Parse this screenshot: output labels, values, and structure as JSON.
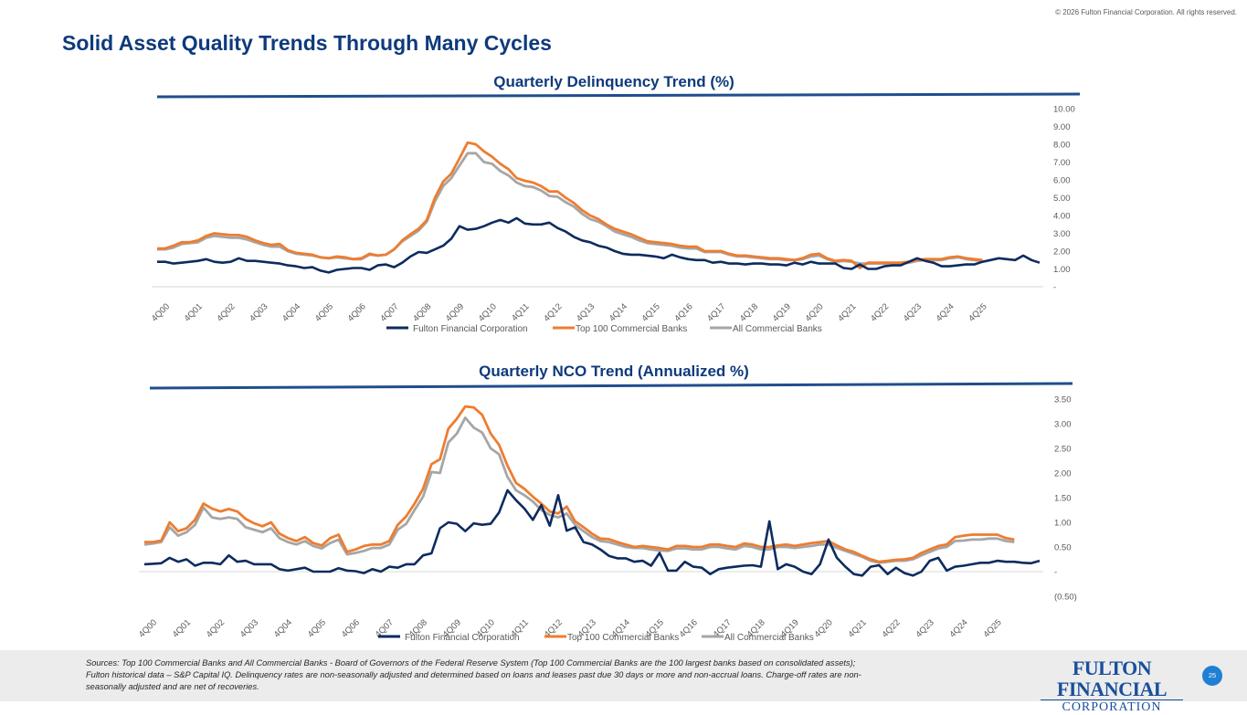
{
  "copyright": "© 2026 Fulton Financial Corporation.  All rights reserved.",
  "page_title": "Solid Asset Quality Trends Through Many Cycles",
  "colors": {
    "title": "#0e3a7c",
    "fulton": "#0d2b5e",
    "top100": "#ed7d31",
    "all": "#a6a6a6",
    "rule": "#1f4e8c"
  },
  "footer": {
    "sources_line1": "Sources: Top 100 Commercial Banks and All Commercial Banks - Board of Governors of the Federal Reserve System (Top 100 Commercial Banks are the 100 largest banks based on consolidated assets);",
    "sources_line2": "Fulton historical data – S&P Capital IQ.  Delinquency rates are non-seasonally adjusted and determined based on loans and leases past due 30 days or more and non-accrual loans.  Charge-off rates are non-",
    "sources_line3": "seasonally adjusted and are net of recoveries.",
    "logo_top": "FULTON FINANCIAL",
    "logo_bottom": "CORPORATION",
    "page_number": "25"
  },
  "chart_data": [
    {
      "type": "line",
      "title": "Quarterly Delinquency Trend (%)",
      "ylim": [
        0,
        10
      ],
      "yticks": [
        0,
        1,
        2,
        3,
        4,
        5,
        6,
        7,
        8,
        9,
        10
      ],
      "ytick_labels": [
        "-",
        "1.00",
        "2.00",
        "3.00",
        "4.00",
        "5.00",
        "6.00",
        "7.00",
        "8.00",
        "9.00",
        "10.00"
      ],
      "xtick_labels": [
        "4Q00",
        "4Q01",
        "4Q02",
        "4Q03",
        "4Q04",
        "4Q05",
        "4Q06",
        "4Q07",
        "4Q08",
        "4Q09",
        "4Q10",
        "4Q11",
        "4Q12",
        "4Q13",
        "4Q14",
        "4Q15",
        "4Q16",
        "4Q17",
        "4Q18",
        "4Q19",
        "4Q20",
        "4Q21",
        "4Q22",
        "4Q23",
        "4Q24",
        "4Q25"
      ],
      "series": [
        {
          "name": "Fulton Financial Corporation",
          "color": "#0d2b5e",
          "values": [
            1.4,
            1.4,
            1.3,
            1.35,
            1.4,
            1.45,
            1.55,
            1.4,
            1.35,
            1.4,
            1.6,
            1.45,
            1.45,
            1.4,
            1.35,
            1.3,
            1.2,
            1.15,
            1.05,
            1.1,
            0.9,
            0.8,
            0.95,
            1.0,
            1.05,
            1.05,
            0.95,
            1.2,
            1.25,
            1.1,
            1.35,
            1.7,
            1.95,
            1.9,
            2.1,
            2.3,
            2.7,
            3.4,
            3.2,
            3.25,
            3.4,
            3.6,
            3.75,
            3.6,
            3.85,
            3.55,
            3.5,
            3.5,
            3.6,
            3.3,
            3.1,
            2.8,
            2.6,
            2.5,
            2.3,
            2.2,
            2.0,
            1.85,
            1.8,
            1.8,
            1.75,
            1.7,
            1.6,
            1.8,
            1.65,
            1.55,
            1.5,
            1.5,
            1.35,
            1.4,
            1.3,
            1.3,
            1.25,
            1.3,
            1.3,
            1.25,
            1.25,
            1.2,
            1.35,
            1.25,
            1.4,
            1.3,
            1.3,
            1.3,
            1.05,
            1.0,
            1.25,
            1.0,
            1.0,
            1.15,
            1.2,
            1.2,
            1.4,
            1.6,
            1.45,
            1.35,
            1.15,
            1.15,
            1.2,
            1.25,
            1.25,
            1.4,
            1.5,
            1.6,
            1.55,
            1.5,
            1.75,
            1.5,
            1.35
          ]
        },
        {
          "name": "Top 100 Commercial Banks",
          "color": "#ed7d31",
          "values": [
            2.15,
            2.15,
            2.3,
            2.5,
            2.5,
            2.6,
            2.85,
            3.0,
            2.95,
            2.9,
            2.9,
            2.8,
            2.6,
            2.45,
            2.35,
            2.4,
            2.05,
            1.9,
            1.85,
            1.8,
            1.65,
            1.6,
            1.7,
            1.65,
            1.55,
            1.6,
            1.85,
            1.75,
            1.8,
            2.1,
            2.6,
            2.95,
            3.25,
            3.75,
            5.0,
            5.9,
            6.35,
            7.2,
            8.1,
            8.0,
            7.6,
            7.3,
            6.9,
            6.6,
            6.1,
            5.95,
            5.85,
            5.65,
            5.35,
            5.35,
            5.0,
            4.7,
            4.3,
            4.0,
            3.8,
            3.5,
            3.25,
            3.1,
            2.95,
            2.75,
            2.55,
            2.5,
            2.45,
            2.4,
            2.3,
            2.25,
            2.25,
            2.0,
            2.0,
            2.0,
            1.85,
            1.75,
            1.75,
            1.7,
            1.65,
            1.6,
            1.6,
            1.55,
            1.5,
            1.6,
            1.8,
            1.85,
            1.6,
            1.45,
            1.5,
            1.45,
            1.05,
            1.35,
            1.35,
            1.35,
            1.35,
            1.35,
            1.4,
            1.5,
            1.55,
            1.55,
            1.55,
            1.65,
            1.7,
            1.6,
            1.55,
            1.5
          ]
        },
        {
          "name": "All Commercial Banks",
          "color": "#a6a6a6",
          "values": [
            2.1,
            2.1,
            2.2,
            2.4,
            2.45,
            2.5,
            2.75,
            2.85,
            2.8,
            2.75,
            2.75,
            2.65,
            2.5,
            2.35,
            2.25,
            2.25,
            2.0,
            1.85,
            1.8,
            1.75,
            1.65,
            1.6,
            1.65,
            1.6,
            1.55,
            1.55,
            1.8,
            1.75,
            1.8,
            2.1,
            2.55,
            2.85,
            3.15,
            3.65,
            4.8,
            5.65,
            6.1,
            6.8,
            7.5,
            7.5,
            7.0,
            6.9,
            6.5,
            6.25,
            5.85,
            5.65,
            5.6,
            5.4,
            5.1,
            5.05,
            4.75,
            4.5,
            4.1,
            3.8,
            3.65,
            3.4,
            3.1,
            2.95,
            2.8,
            2.6,
            2.45,
            2.4,
            2.35,
            2.3,
            2.2,
            2.15,
            2.15,
            1.95,
            1.95,
            1.95,
            1.8,
            1.7,
            1.7,
            1.65,
            1.6,
            1.55,
            1.55,
            1.5,
            1.5,
            1.55,
            1.7,
            1.75,
            1.55,
            1.4,
            1.45,
            1.4,
            1.3,
            1.3,
            1.3,
            1.3,
            1.3,
            1.3,
            1.35,
            1.45,
            1.5,
            1.5,
            1.5,
            1.6,
            1.65,
            1.55,
            1.5,
            1.45
          ]
        }
      ]
    },
    {
      "type": "line",
      "title": "Quarterly NCO Trend (Annualized  %)",
      "ylim": [
        -0.5,
        3.5
      ],
      "yticks": [
        -0.5,
        0,
        0.5,
        1,
        1.5,
        2,
        2.5,
        3,
        3.5
      ],
      "ytick_labels": [
        "(0.50)",
        "-",
        "0.50",
        "1.00",
        "1.50",
        "2.00",
        "2.50",
        "3.00",
        "3.50"
      ],
      "xtick_labels": [
        "4Q00",
        "4Q01",
        "4Q02",
        "4Q03",
        "4Q04",
        "4Q05",
        "4Q06",
        "4Q07",
        "4Q08",
        "4Q09",
        "4Q10",
        "4Q11",
        "4Q12",
        "4Q13",
        "4Q14",
        "4Q15",
        "4Q16",
        "4Q17",
        "4Q18",
        "4Q19",
        "4Q20",
        "4Q21",
        "4Q22",
        "4Q23",
        "4Q24",
        "4Q25"
      ],
      "series": [
        {
          "name": "Fulton Financial Corporation",
          "color": "#0d2b5e",
          "values": [
            0.15,
            0.16,
            0.17,
            0.28,
            0.2,
            0.25,
            0.12,
            0.18,
            0.18,
            0.15,
            0.33,
            0.2,
            0.22,
            0.15,
            0.15,
            0.15,
            0.05,
            0.02,
            0.05,
            0.08,
            0.0,
            0.0,
            0.0,
            0.07,
            0.02,
            0.01,
            -0.03,
            0.05,
            0.0,
            0.1,
            0.08,
            0.15,
            0.15,
            0.33,
            0.37,
            0.88,
            1.0,
            0.97,
            0.82,
            0.98,
            0.95,
            0.97,
            1.2,
            1.65,
            1.45,
            1.28,
            1.05,
            1.35,
            0.93,
            1.55,
            0.83,
            0.9,
            0.6,
            0.55,
            0.45,
            0.32,
            0.27,
            0.27,
            0.2,
            0.22,
            0.12,
            0.38,
            0.02,
            0.02,
            0.2,
            0.1,
            0.08,
            -0.05,
            0.05,
            0.08,
            0.1,
            0.12,
            0.13,
            0.1,
            1.02,
            0.05,
            0.15,
            0.1,
            0.0,
            -0.05,
            0.15,
            0.65,
            0.28,
            0.1,
            -0.05,
            -0.08,
            0.1,
            0.13,
            -0.05,
            0.08,
            -0.03,
            -0.08,
            0.0,
            0.22,
            0.28,
            0.02,
            0.1,
            0.12,
            0.15,
            0.18,
            0.18,
            0.22,
            0.2,
            0.2,
            0.18,
            0.17,
            0.22
          ]
        },
        {
          "name": "Top 100 Commercial Banks",
          "color": "#ed7d31",
          "values": [
            0.6,
            0.6,
            0.63,
            1.0,
            0.82,
            0.88,
            1.05,
            1.38,
            1.28,
            1.22,
            1.27,
            1.22,
            1.07,
            0.98,
            0.92,
            1.0,
            0.77,
            0.68,
            0.62,
            0.7,
            0.58,
            0.53,
            0.68,
            0.75,
            0.4,
            0.45,
            0.52,
            0.55,
            0.55,
            0.62,
            0.95,
            1.12,
            1.38,
            1.68,
            2.18,
            2.28,
            2.9,
            3.1,
            3.35,
            3.33,
            3.18,
            2.8,
            2.57,
            2.15,
            1.8,
            1.68,
            1.52,
            1.38,
            1.22,
            1.18,
            1.32,
            1.02,
            0.9,
            0.77,
            0.67,
            0.66,
            0.6,
            0.55,
            0.5,
            0.52,
            0.5,
            0.48,
            0.45,
            0.52,
            0.52,
            0.5,
            0.5,
            0.55,
            0.55,
            0.52,
            0.5,
            0.57,
            0.55,
            0.5,
            0.5,
            0.53,
            0.55,
            0.52,
            0.55,
            0.58,
            0.6,
            0.62,
            0.53,
            0.45,
            0.4,
            0.32,
            0.25,
            0.2,
            0.22,
            0.24,
            0.25,
            0.28,
            0.38,
            0.45,
            0.52,
            0.55,
            0.7,
            0.73,
            0.75,
            0.75,
            0.75,
            0.75,
            0.68,
            0.65
          ]
        },
        {
          "name": "All Commercial Banks",
          "color": "#a6a6a6",
          "values": [
            0.55,
            0.57,
            0.6,
            0.9,
            0.73,
            0.8,
            0.95,
            1.3,
            1.1,
            1.07,
            1.1,
            1.07,
            0.9,
            0.85,
            0.8,
            0.88,
            0.68,
            0.6,
            0.55,
            0.62,
            0.52,
            0.47,
            0.58,
            0.65,
            0.35,
            0.38,
            0.42,
            0.48,
            0.48,
            0.55,
            0.85,
            0.97,
            1.25,
            1.52,
            2.02,
            2.0,
            2.62,
            2.8,
            3.12,
            2.92,
            2.82,
            2.5,
            2.38,
            1.92,
            1.65,
            1.55,
            1.42,
            1.25,
            1.15,
            1.1,
            1.18,
            0.95,
            0.82,
            0.7,
            0.62,
            0.6,
            0.55,
            0.5,
            0.48,
            0.48,
            0.45,
            0.43,
            0.42,
            0.47,
            0.47,
            0.45,
            0.45,
            0.5,
            0.5,
            0.47,
            0.45,
            0.52,
            0.5,
            0.45,
            0.45,
            0.5,
            0.5,
            0.48,
            0.5,
            0.52,
            0.55,
            0.55,
            0.48,
            0.42,
            0.36,
            0.3,
            0.22,
            0.18,
            0.2,
            0.22,
            0.22,
            0.25,
            0.33,
            0.4,
            0.47,
            0.5,
            0.62,
            0.63,
            0.65,
            0.65,
            0.67,
            0.67,
            0.62,
            0.6
          ]
        }
      ]
    }
  ]
}
